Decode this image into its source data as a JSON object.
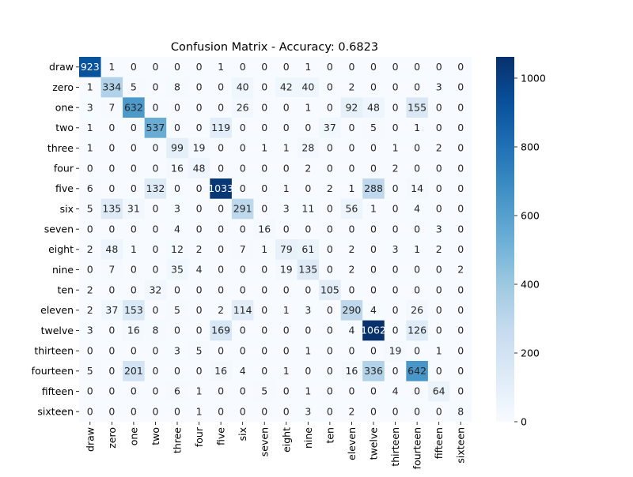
{
  "chart_data": {
    "type": "heatmap",
    "title": "Confusion Matrix - Accuracy: 0.6823",
    "xlabel": "",
    "ylabel": "",
    "row_labels": [
      "draw",
      "zero",
      "one",
      "two",
      "three",
      "four",
      "five",
      "six",
      "seven",
      "eight",
      "nine",
      "ten",
      "eleven",
      "twelve",
      "thirteen",
      "fourteen",
      "fifteen",
      "sixteen"
    ],
    "col_labels": [
      "draw",
      "zero",
      "one",
      "two",
      "three",
      "four",
      "five",
      "six",
      "seven",
      "eight",
      "nine",
      "ten",
      "eleven",
      "twelve",
      "thirteen",
      "fourteen",
      "fifteen",
      "sixteen"
    ],
    "matrix": [
      [
        923,
        1,
        0,
        0,
        0,
        0,
        1,
        0,
        0,
        0,
        1,
        0,
        0,
        0,
        0,
        0,
        0,
        0
      ],
      [
        1,
        334,
        5,
        0,
        8,
        0,
        0,
        40,
        0,
        42,
        40,
        0,
        2,
        0,
        0,
        0,
        3,
        0
      ],
      [
        3,
        7,
        632,
        0,
        0,
        0,
        0,
        26,
        0,
        0,
        1,
        0,
        92,
        48,
        0,
        155,
        0,
        0
      ],
      [
        1,
        0,
        0,
        537,
        0,
        0,
        119,
        0,
        0,
        0,
        0,
        37,
        0,
        5,
        0,
        1,
        0,
        0
      ],
      [
        1,
        0,
        0,
        0,
        99,
        19,
        0,
        0,
        1,
        1,
        28,
        0,
        0,
        0,
        1,
        0,
        2,
        0
      ],
      [
        0,
        0,
        0,
        0,
        16,
        48,
        0,
        0,
        0,
        0,
        2,
        0,
        0,
        0,
        2,
        0,
        0,
        0
      ],
      [
        6,
        0,
        0,
        132,
        0,
        0,
        1033,
        0,
        0,
        1,
        0,
        2,
        1,
        288,
        0,
        14,
        0,
        0
      ],
      [
        5,
        135,
        31,
        0,
        3,
        0,
        0,
        291,
        0,
        3,
        11,
        0,
        56,
        1,
        0,
        4,
        0,
        0
      ],
      [
        0,
        0,
        0,
        0,
        4,
        0,
        0,
        0,
        16,
        0,
        0,
        0,
        0,
        0,
        0,
        0,
        3,
        0
      ],
      [
        2,
        48,
        1,
        0,
        12,
        2,
        0,
        7,
        1,
        79,
        61,
        0,
        2,
        0,
        3,
        1,
        2,
        0
      ],
      [
        0,
        7,
        0,
        0,
        35,
        4,
        0,
        0,
        0,
        19,
        135,
        0,
        2,
        0,
        0,
        0,
        0,
        2
      ],
      [
        2,
        0,
        0,
        32,
        0,
        0,
        0,
        0,
        0,
        0,
        0,
        105,
        0,
        0,
        0,
        0,
        0,
        0
      ],
      [
        2,
        37,
        153,
        0,
        5,
        0,
        2,
        114,
        0,
        1,
        3,
        0,
        290,
        4,
        0,
        26,
        0,
        0
      ],
      [
        3,
        0,
        16,
        8,
        0,
        0,
        169,
        0,
        0,
        0,
        0,
        0,
        4,
        1062,
        0,
        126,
        0,
        0
      ],
      [
        0,
        0,
        0,
        0,
        3,
        5,
        0,
        0,
        0,
        0,
        1,
        0,
        0,
        0,
        19,
        0,
        1,
        0
      ],
      [
        5,
        0,
        201,
        0,
        0,
        0,
        16,
        4,
        0,
        1,
        0,
        0,
        16,
        336,
        0,
        642,
        0,
        0
      ],
      [
        0,
        0,
        0,
        0,
        6,
        1,
        0,
        0,
        5,
        0,
        1,
        0,
        0,
        0,
        4,
        0,
        64,
        0
      ],
      [
        0,
        0,
        0,
        0,
        0,
        1,
        0,
        0,
        0,
        0,
        3,
        0,
        2,
        0,
        0,
        0,
        0,
        8
      ]
    ],
    "colorbar": {
      "range": [
        0,
        1062
      ],
      "ticks": [
        0,
        200,
        400,
        600,
        800,
        1000
      ],
      "cmap": "Blues",
      "low_color": "#f7fbff",
      "high_color": "#08306b"
    },
    "grid": false,
    "legend": "colorbar-right"
  }
}
